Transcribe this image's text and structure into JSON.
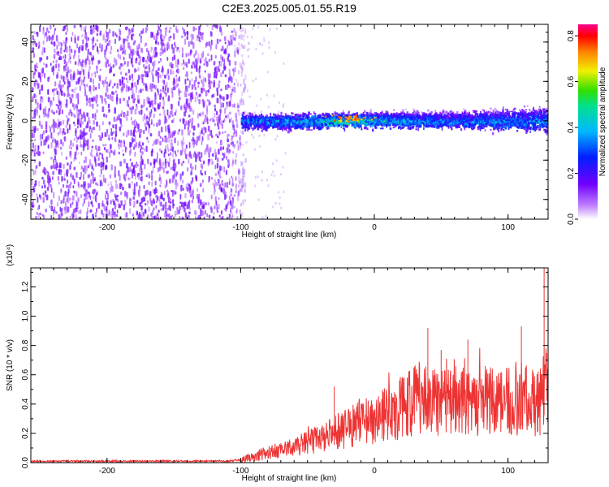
{
  "title": "C2E3.2025.005.01.55.R19",
  "chart_data": [
    {
      "type": "heatmap",
      "xlabel": "Height of straight line (km)",
      "ylabel": "Frequency (Hz)",
      "xlim": [
        -257,
        130
      ],
      "ylim": [
        -50,
        49
      ],
      "xticks": [
        "-200",
        "-100",
        "0",
        "100"
      ],
      "yticks": [
        "-40",
        "-20",
        "0",
        "20",
        "40"
      ],
      "colorbar": {
        "label": "Normalized spectral amplitude",
        "range": [
          0.0,
          0.85
        ],
        "ticks": [
          "0.0",
          "0.2",
          "0.4",
          "0.6",
          "0.8"
        ],
        "colormap": "rainbow",
        "colors": [
          "#ffffff",
          "#8a2be2",
          "#2020ff",
          "#00c8ff",
          "#00e040",
          "#ffff00",
          "#ff8c00",
          "#ff0000",
          "#ff00a0"
        ]
      },
      "regions": [
        {
          "x_range": [
            -257,
            -97
          ],
          "freq_range": [
            -50,
            49
          ],
          "amplitude": 0.1,
          "pattern": "scattered noise"
        },
        {
          "x_range": [
            -100,
            130
          ],
          "freq_range": [
            -7,
            8
          ],
          "amplitude_peak": 0.75,
          "peak_x": -20,
          "pattern": "band near 0 Hz"
        }
      ],
      "grid": false,
      "legend": "right"
    },
    {
      "type": "line",
      "xlabel": "Height of straight line (km)",
      "ylabel": "SNR (10 * v/v)",
      "multiplier": "(x10⁴)",
      "xlim": [
        -257,
        130
      ],
      "ylim": [
        0,
        1.33
      ],
      "xticks": [
        "-200",
        "-100",
        "0",
        "100"
      ],
      "yticks": [
        "0.0",
        "0.2",
        "0.4",
        "0.6",
        "0.8",
        "1.0",
        "1.2"
      ],
      "color": "#ee3333",
      "series": [
        {
          "x": [
            -257,
            -230,
            -200,
            -170,
            -140,
            -110,
            -100,
            -90,
            -80,
            -70,
            -60,
            -50,
            -40,
            -30,
            -20,
            -10,
            0,
            10,
            20,
            30,
            40,
            50,
            60,
            70,
            80,
            90,
            100,
            110,
            120,
            125,
            128,
            130
          ],
          "y": [
            0.01,
            0.01,
            0.01,
            0.01,
            0.01,
            0.01,
            0.02,
            0.04,
            0.07,
            0.08,
            0.1,
            0.14,
            0.17,
            0.2,
            0.24,
            0.28,
            0.3,
            0.33,
            0.38,
            0.42,
            0.42,
            0.42,
            0.42,
            0.42,
            0.42,
            0.42,
            0.42,
            0.42,
            0.4,
            0.42,
            0.6,
            0.35
          ],
          "peaks": [
            [
              -30,
              0.52
            ],
            [
              40,
              0.92
            ],
            [
              50,
              0.77
            ],
            [
              70,
              0.84
            ],
            [
              110,
              0.93
            ],
            [
              127,
              1.33
            ]
          ]
        }
      ],
      "grid": false
    }
  ]
}
